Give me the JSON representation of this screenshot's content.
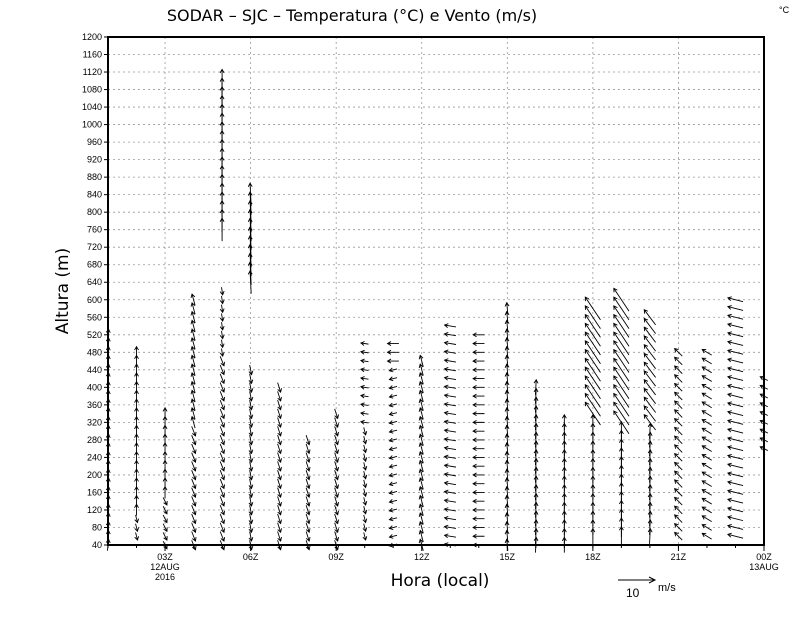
{
  "chart_data": {
    "type": "vector",
    "title": "SODAR – SJC – Temperatura (°C) e Vento (m/s)",
    "corner_label": "°C",
    "xlabel": "Hora (local)",
    "ylabel": "Altura (m)",
    "xlim_hours": [
      1,
      24
    ],
    "ylim": [
      40,
      1200
    ],
    "ytick_step": 40,
    "xticks": [
      {
        "hour": 3,
        "label": "03Z",
        "sub": [
          "12AUG",
          "2016"
        ]
      },
      {
        "hour": 6,
        "label": "06Z",
        "sub": []
      },
      {
        "hour": 9,
        "label": "09Z",
        "sub": []
      },
      {
        "hour": 12,
        "label": "12Z",
        "sub": []
      },
      {
        "hour": 15,
        "label": "15Z",
        "sub": []
      },
      {
        "hour": 18,
        "label": "18Z",
        "sub": []
      },
      {
        "hour": 21,
        "label": "21Z",
        "sub": []
      },
      {
        "hour": 24,
        "label": "00Z",
        "sub": [
          "13AUG"
        ]
      }
    ],
    "grid": true,
    "reference_vector": {
      "value": "10",
      "unit": "m/s",
      "speed": 10
    },
    "level_step_m": 20,
    "profiles": [
      {
        "hour": 1,
        "segments": [
          [
            40,
            520,
            0.3,
            3
          ]
        ]
      },
      {
        "hour": 2,
        "segments": [
          [
            60,
            100,
            0.5,
            -2
          ],
          [
            120,
            480,
            0,
            3
          ]
        ]
      },
      {
        "hour": 3,
        "segments": [
          [
            40,
            140,
            1,
            -2
          ],
          [
            160,
            340,
            0,
            3
          ]
        ]
      },
      {
        "hour": 4,
        "segments": [
          [
            40,
            300,
            1,
            -2.5
          ],
          [
            320,
            600,
            -0.8,
            3
          ]
        ]
      },
      {
        "hour": 5,
        "segments": [
          [
            40,
            460,
            1,
            -2.5
          ],
          [
            480,
            620,
            0.3,
            -2
          ],
          [
            760,
            1100,
            0,
            6
          ]
        ]
      },
      {
        "hour": 6,
        "segments": [
          [
            40,
            440,
            0.5,
            -2.5
          ],
          [
            640,
            840,
            -0.3,
            6
          ]
        ]
      },
      {
        "hour": 7,
        "segments": [
          [
            40,
            400,
            0.8,
            -2.5
          ]
        ]
      },
      {
        "hour": 8,
        "segments": [
          [
            40,
            280,
            0.8,
            -2.5
          ]
        ]
      },
      {
        "hour": 9,
        "segments": [
          [
            40,
            340,
            0.8,
            -2.5
          ]
        ]
      },
      {
        "hour": 10,
        "segments": [
          [
            60,
            300,
            0.5,
            -2
          ],
          [
            320,
            500,
            -2,
            0.3
          ]
        ]
      },
      {
        "hour": 11,
        "segments": [
          [
            40,
            440,
            -2,
            -0.5
          ],
          [
            460,
            500,
            -3,
            0
          ]
        ]
      },
      {
        "hour": 12,
        "segments": [
          [
            40,
            460,
            -0.8,
            3
          ]
        ]
      },
      {
        "hour": 13,
        "segments": [
          [
            40,
            540,
            -3,
            0.5
          ]
        ]
      },
      {
        "hour": 14,
        "segments": [
          [
            40,
            520,
            -3,
            0
          ]
        ]
      },
      {
        "hour": 15,
        "segments": [
          [
            40,
            580,
            -0.3,
            3
          ]
        ]
      },
      {
        "hour": 16,
        "segments": [
          [
            40,
            410,
            0.2,
            4
          ]
        ]
      },
      {
        "hour": 17,
        "segments": [
          [
            40,
            320,
            0,
            4
          ]
        ]
      },
      {
        "hour": 18,
        "segments": [
          [
            60,
            330,
            0,
            4
          ],
          [
            340,
            580,
            -4,
            6
          ]
        ]
      },
      {
        "hour": 19,
        "segments": [
          [
            60,
            300,
            0,
            5
          ],
          [
            320,
            600,
            -4,
            6
          ]
        ]
      },
      {
        "hour": 20,
        "segments": [
          [
            60,
            300,
            0.2,
            4
          ],
          [
            320,
            560,
            -3,
            4
          ]
        ]
      },
      {
        "hour": 21,
        "segments": [
          [
            60,
            480,
            -2,
            2
          ]
        ]
      },
      {
        "hour": 22,
        "segments": [
          [
            60,
            480,
            -2.5,
            1.5
          ]
        ]
      },
      {
        "hour": 23,
        "segments": [
          [
            60,
            600,
            -4,
            1
          ]
        ]
      },
      {
        "hour": 24,
        "segments": [
          [
            260,
            420,
            -2,
            1
          ]
        ]
      }
    ]
  }
}
